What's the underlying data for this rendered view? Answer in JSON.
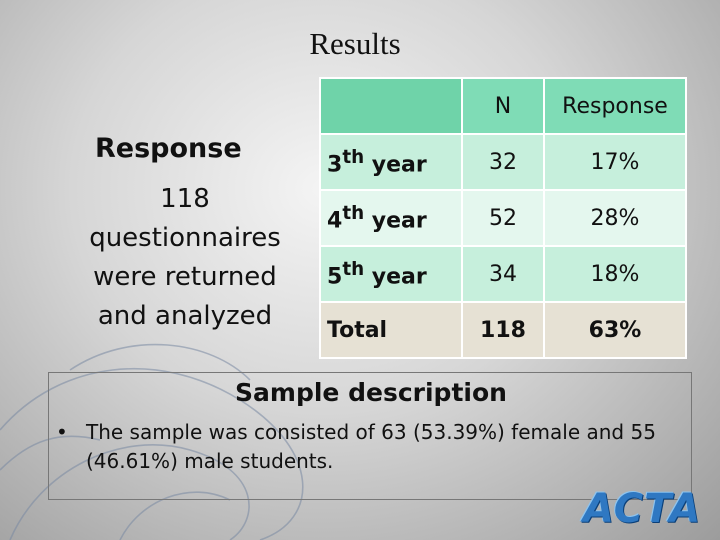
{
  "title": "Results",
  "left": {
    "heading": "Response",
    "text": "118 questionnaires were returned and analyzed"
  },
  "table": {
    "headers": [
      "",
      "N",
      "Response"
    ],
    "rows": [
      {
        "year_num": "3",
        "sup": "th",
        "word": " year",
        "n": "32",
        "response": "17%"
      },
      {
        "year_num": "4",
        "sup": "th",
        "word": " year",
        "n": "52",
        "response": "28%"
      },
      {
        "year_num": "5",
        "sup": "th",
        "word": " year",
        "n": "34",
        "response": "18%"
      }
    ],
    "total": {
      "label": "Total",
      "n": "118",
      "response": "63%"
    }
  },
  "sample": {
    "title": "Sample description",
    "bullet": "•",
    "text": "The sample was consisted of 63 (53.39%) female and 55 (46.61%) male students."
  },
  "logo": "ACTA"
}
